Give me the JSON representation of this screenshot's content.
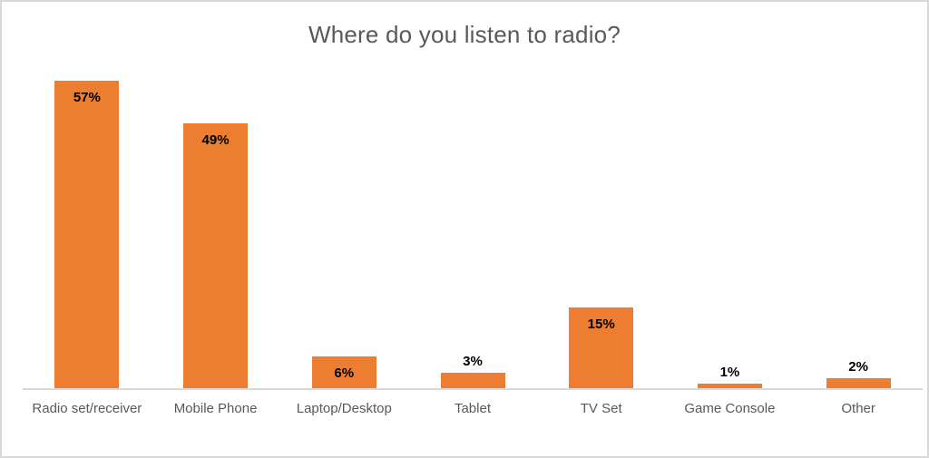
{
  "chart": {
    "colors": {
      "bar_fill": "#ed7d31",
      "title_text": "#595959",
      "axis_label_text": "#595959",
      "data_label_text": "#000000",
      "axis_line": "#d9d9d9",
      "frame_border": "#d8d8d8",
      "background": "#ffffff"
    }
  },
  "chart_data": {
    "type": "bar",
    "title": "Where do you listen to radio?",
    "categories": [
      "Radio set/receiver",
      "Mobile Phone",
      "Laptop/Desktop",
      "Tablet",
      "TV Set",
      "Game Console",
      "Other"
    ],
    "values": [
      57,
      49,
      6,
      3,
      15,
      1,
      2
    ],
    "value_labels": [
      "57%",
      "49%",
      "6%",
      "3%",
      "15%",
      "1%",
      "2%"
    ],
    "unit": "percent",
    "xlabel": "",
    "ylabel": "",
    "ylim": [
      0,
      60
    ],
    "grid": false,
    "legend": false,
    "y_axis_visible": false,
    "data_label_position": "inside-end, outside above bar when bar is too short"
  }
}
